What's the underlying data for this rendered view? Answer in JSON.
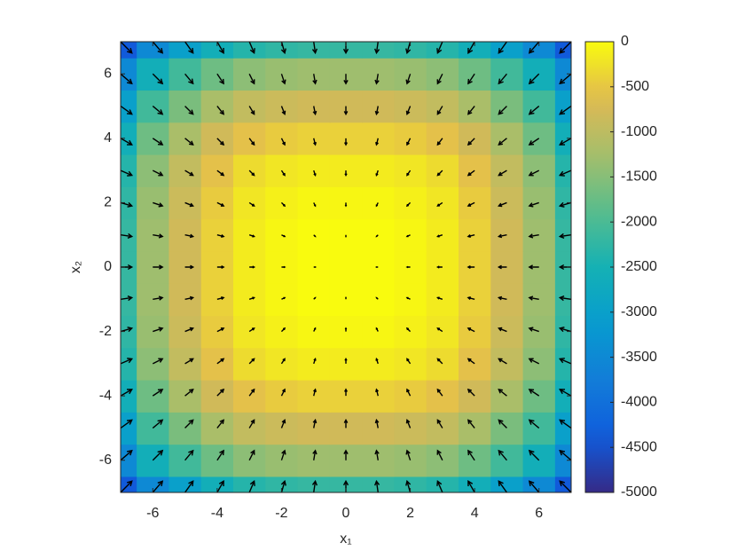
{
  "chart_data": {
    "type": "heatmap-quiver",
    "xlabel": "x₁",
    "ylabel": "x₂",
    "xlim": [
      -7,
      7
    ],
    "ylim": [
      -7,
      7
    ],
    "xticks": [
      -6,
      -4,
      -2,
      0,
      2,
      4,
      6
    ],
    "yticks": [
      -6,
      -4,
      -2,
      0,
      2,
      4,
      6
    ],
    "clim": [
      -5000,
      0
    ],
    "cticks": [
      0,
      -500,
      -1000,
      -1500,
      -2000,
      -2500,
      -3000,
      -3500,
      -4000,
      -4500,
      -5000
    ],
    "colormap": "parula",
    "arrow_color": "#000000",
    "x": [
      -7,
      -6,
      -5,
      -4,
      -3,
      -2,
      -1,
      0,
      1,
      2,
      3,
      4,
      5,
      6,
      7
    ],
    "y": [
      -7,
      -6,
      -5,
      -4,
      -3,
      -2,
      -1,
      0,
      1,
      2,
      3,
      4,
      5,
      6,
      7
    ],
    "z": [
      [
        -4400,
        -3500,
        -3000,
        -2600,
        -2350,
        -2250,
        -2200,
        -2200,
        -2200,
        -2250,
        -2350,
        -2600,
        -3000,
        -3500,
        -4400
      ],
      [
        -3500,
        -2600,
        -2100,
        -1700,
        -1450,
        -1350,
        -1300,
        -1300,
        -1300,
        -1350,
        -1450,
        -1700,
        -2100,
        -2600,
        -3500
      ],
      [
        -3000,
        -2100,
        -1600,
        -1200,
        -950,
        -850,
        -800,
        -800,
        -800,
        -850,
        -950,
        -1200,
        -1600,
        -2100,
        -3000
      ],
      [
        -2600,
        -1700,
        -1200,
        -800,
        -550,
        -450,
        -400,
        -400,
        -400,
        -450,
        -550,
        -800,
        -1200,
        -1700,
        -2600
      ],
      [
        -2350,
        -1450,
        -950,
        -550,
        -300,
        -200,
        -150,
        -150,
        -150,
        -200,
        -300,
        -550,
        -950,
        -1450,
        -2350
      ],
      [
        -2250,
        -1350,
        -850,
        -450,
        -200,
        -100,
        -50,
        -50,
        -50,
        -100,
        -200,
        -450,
        -850,
        -1350,
        -2250
      ],
      [
        -2200,
        -1300,
        -800,
        -400,
        -150,
        -50,
        0,
        0,
        0,
        -50,
        -150,
        -400,
        -800,
        -1300,
        -2200
      ],
      [
        -2200,
        -1300,
        -800,
        -400,
        -150,
        -50,
        0,
        0,
        0,
        -50,
        -150,
        -400,
        -800,
        -1300,
        -2200
      ],
      [
        -2200,
        -1300,
        -800,
        -400,
        -150,
        -50,
        0,
        0,
        0,
        -50,
        -150,
        -400,
        -800,
        -1300,
        -2200
      ],
      [
        -2250,
        -1350,
        -850,
        -450,
        -200,
        -100,
        -50,
        -50,
        -50,
        -100,
        -200,
        -450,
        -850,
        -1350,
        -2250
      ],
      [
        -2350,
        -1450,
        -950,
        -550,
        -300,
        -200,
        -150,
        -150,
        -150,
        -200,
        -300,
        -550,
        -950,
        -1450,
        -2350
      ],
      [
        -2600,
        -1700,
        -1200,
        -800,
        -550,
        -450,
        -400,
        -400,
        -400,
        -450,
        -550,
        -800,
        -1200,
        -1700,
        -2600
      ],
      [
        -3000,
        -2100,
        -1600,
        -1200,
        -950,
        -850,
        -800,
        -800,
        -800,
        -850,
        -950,
        -1200,
        -1600,
        -2100,
        -3000
      ],
      [
        -3500,
        -2600,
        -2100,
        -1700,
        -1450,
        -1350,
        -1300,
        -1300,
        -1300,
        -1350,
        -1450,
        -1700,
        -2100,
        -2600,
        -3500
      ],
      [
        -4400,
        -3500,
        -3000,
        -2600,
        -2350,
        -2250,
        -2200,
        -2200,
        -2200,
        -2250,
        -2350,
        -2600,
        -3000,
        -3500,
        -4400
      ]
    ],
    "u": [
      [
        0.35,
        0.3,
        0.25,
        0.2,
        0.15,
        0.1,
        0.05,
        0,
        -0.05,
        -0.1,
        -0.15,
        -0.2,
        -0.25,
        -0.3,
        -0.35
      ],
      [
        0.35,
        0.3,
        0.25,
        0.2,
        0.15,
        0.1,
        0.05,
        0,
        -0.05,
        -0.1,
        -0.15,
        -0.2,
        -0.25,
        -0.3,
        -0.35
      ],
      [
        0.35,
        0.3,
        0.25,
        0.2,
        0.15,
        0.1,
        0.05,
        0,
        -0.05,
        -0.1,
        -0.15,
        -0.2,
        -0.25,
        -0.3,
        -0.35
      ],
      [
        0.35,
        0.3,
        0.25,
        0.2,
        0.15,
        0.1,
        0.05,
        0,
        -0.05,
        -0.1,
        -0.15,
        -0.2,
        -0.25,
        -0.3,
        -0.35
      ],
      [
        0.35,
        0.3,
        0.25,
        0.2,
        0.15,
        0.1,
        0.05,
        0,
        -0.05,
        -0.1,
        -0.15,
        -0.2,
        -0.25,
        -0.3,
        -0.35
      ],
      [
        0.35,
        0.3,
        0.25,
        0.2,
        0.15,
        0.1,
        0.05,
        0,
        -0.05,
        -0.1,
        -0.15,
        -0.2,
        -0.25,
        -0.3,
        -0.35
      ],
      [
        0.35,
        0.3,
        0.25,
        0.2,
        0.15,
        0.1,
        0.05,
        0,
        -0.05,
        -0.1,
        -0.15,
        -0.2,
        -0.25,
        -0.3,
        -0.35
      ],
      [
        0.35,
        0.3,
        0.25,
        0.2,
        0.15,
        0.1,
        0.05,
        0,
        -0.05,
        -0.1,
        -0.15,
        -0.2,
        -0.25,
        -0.3,
        -0.35
      ],
      [
        0.35,
        0.3,
        0.25,
        0.2,
        0.15,
        0.1,
        0.05,
        0,
        -0.05,
        -0.1,
        -0.15,
        -0.2,
        -0.25,
        -0.3,
        -0.35
      ],
      [
        0.35,
        0.3,
        0.25,
        0.2,
        0.15,
        0.1,
        0.05,
        0,
        -0.05,
        -0.1,
        -0.15,
        -0.2,
        -0.25,
        -0.3,
        -0.35
      ],
      [
        0.35,
        0.3,
        0.25,
        0.2,
        0.15,
        0.1,
        0.05,
        0,
        -0.05,
        -0.1,
        -0.15,
        -0.2,
        -0.25,
        -0.3,
        -0.35
      ],
      [
        0.35,
        0.3,
        0.25,
        0.2,
        0.15,
        0.1,
        0.05,
        0,
        -0.05,
        -0.1,
        -0.15,
        -0.2,
        -0.25,
        -0.3,
        -0.35
      ],
      [
        0.35,
        0.3,
        0.25,
        0.2,
        0.15,
        0.1,
        0.05,
        0,
        -0.05,
        -0.1,
        -0.15,
        -0.2,
        -0.25,
        -0.3,
        -0.35
      ],
      [
        0.35,
        0.3,
        0.25,
        0.2,
        0.15,
        0.1,
        0.05,
        0,
        -0.05,
        -0.1,
        -0.15,
        -0.2,
        -0.25,
        -0.3,
        -0.35
      ],
      [
        0.35,
        0.3,
        0.25,
        0.2,
        0.15,
        0.1,
        0.05,
        0,
        -0.05,
        -0.1,
        -0.15,
        -0.2,
        -0.25,
        -0.3,
        -0.35
      ]
    ],
    "v": [
      [
        0.35,
        0.35,
        0.35,
        0.35,
        0.35,
        0.35,
        0.35,
        0.35,
        0.35,
        0.35,
        0.35,
        0.35,
        0.35,
        0.35,
        0.35
      ],
      [
        0.3,
        0.3,
        0.3,
        0.3,
        0.3,
        0.3,
        0.3,
        0.3,
        0.3,
        0.3,
        0.3,
        0.3,
        0.3,
        0.3,
        0.3
      ],
      [
        0.25,
        0.25,
        0.25,
        0.25,
        0.25,
        0.25,
        0.25,
        0.25,
        0.25,
        0.25,
        0.25,
        0.25,
        0.25,
        0.25,
        0.25
      ],
      [
        0.2,
        0.2,
        0.2,
        0.2,
        0.2,
        0.2,
        0.2,
        0.2,
        0.2,
        0.2,
        0.2,
        0.2,
        0.2,
        0.2,
        0.2
      ],
      [
        0.15,
        0.15,
        0.15,
        0.15,
        0.15,
        0.15,
        0.15,
        0.15,
        0.15,
        0.15,
        0.15,
        0.15,
        0.15,
        0.15,
        0.15
      ],
      [
        0.1,
        0.1,
        0.1,
        0.1,
        0.1,
        0.1,
        0.1,
        0.1,
        0.1,
        0.1,
        0.1,
        0.1,
        0.1,
        0.1,
        0.1
      ],
      [
        0.05,
        0.05,
        0.05,
        0.05,
        0.05,
        0.05,
        0.05,
        0.05,
        0.05,
        0.05,
        0.05,
        0.05,
        0.05,
        0.05,
        0.05
      ],
      [
        0,
        0,
        0,
        0,
        0,
        0,
        0,
        0,
        0,
        0,
        0,
        0,
        0,
        0,
        0
      ],
      [
        -0.05,
        -0.05,
        -0.05,
        -0.05,
        -0.05,
        -0.05,
        -0.05,
        -0.05,
        -0.05,
        -0.05,
        -0.05,
        -0.05,
        -0.05,
        -0.05,
        -0.05
      ],
      [
        -0.1,
        -0.1,
        -0.1,
        -0.1,
        -0.1,
        -0.1,
        -0.1,
        -0.1,
        -0.1,
        -0.1,
        -0.1,
        -0.1,
        -0.1,
        -0.1,
        -0.1
      ],
      [
        -0.15,
        -0.15,
        -0.15,
        -0.15,
        -0.15,
        -0.15,
        -0.15,
        -0.15,
        -0.15,
        -0.15,
        -0.15,
        -0.15,
        -0.15,
        -0.15,
        -0.15
      ],
      [
        -0.2,
        -0.2,
        -0.2,
        -0.2,
        -0.2,
        -0.2,
        -0.2,
        -0.2,
        -0.2,
        -0.2,
        -0.2,
        -0.2,
        -0.2,
        -0.2,
        -0.2
      ],
      [
        -0.25,
        -0.25,
        -0.25,
        -0.25,
        -0.25,
        -0.25,
        -0.25,
        -0.25,
        -0.25,
        -0.25,
        -0.25,
        -0.25,
        -0.25,
        -0.25,
        -0.25
      ],
      [
        -0.3,
        -0.3,
        -0.3,
        -0.3,
        -0.3,
        -0.3,
        -0.3,
        -0.3,
        -0.3,
        -0.3,
        -0.3,
        -0.3,
        -0.3,
        -0.3,
        -0.3
      ],
      [
        -0.35,
        -0.35,
        -0.35,
        -0.35,
        -0.35,
        -0.35,
        -0.35,
        -0.35,
        -0.35,
        -0.35,
        -0.35,
        -0.35,
        -0.35,
        -0.35,
        -0.35
      ]
    ]
  }
}
